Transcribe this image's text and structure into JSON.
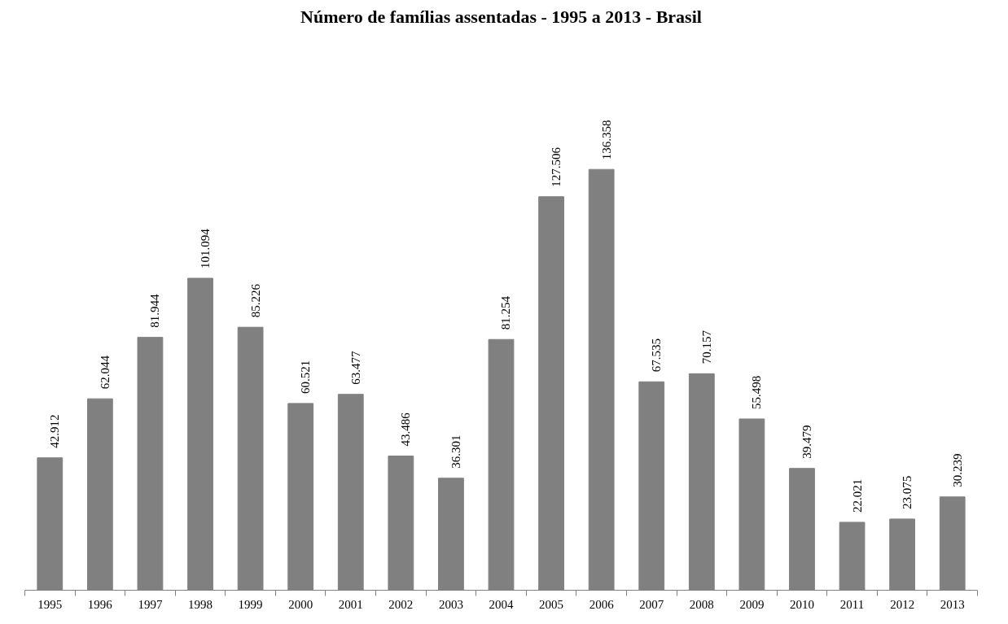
{
  "chart_data": {
    "type": "bar",
    "title": "Número de famílias assentadas - 1995 a 2013 - Brasil",
    "categories": [
      "1995",
      "1996",
      "1997",
      "1998",
      "1999",
      "2000",
      "2001",
      "2002",
      "2003",
      "2004",
      "2005",
      "2006",
      "2007",
      "2008",
      "2009",
      "2010",
      "2011",
      "2012",
      "2013"
    ],
    "values": [
      42912,
      62044,
      81944,
      101094,
      85226,
      60521,
      63477,
      43486,
      36301,
      81254,
      127506,
      136358,
      67535,
      70157,
      55498,
      39479,
      22021,
      23075,
      30239
    ],
    "value_labels": [
      "42.912",
      "62.044",
      "81.944",
      "101.094",
      "85.226",
      "60.521",
      "63.477",
      "43.486",
      "36.301",
      "81.254",
      "127.506",
      "136.358",
      "67.535",
      "70.157",
      "55.498",
      "39.479",
      "22.021",
      "23.075",
      "30.239"
    ],
    "color": "#808080"
  }
}
